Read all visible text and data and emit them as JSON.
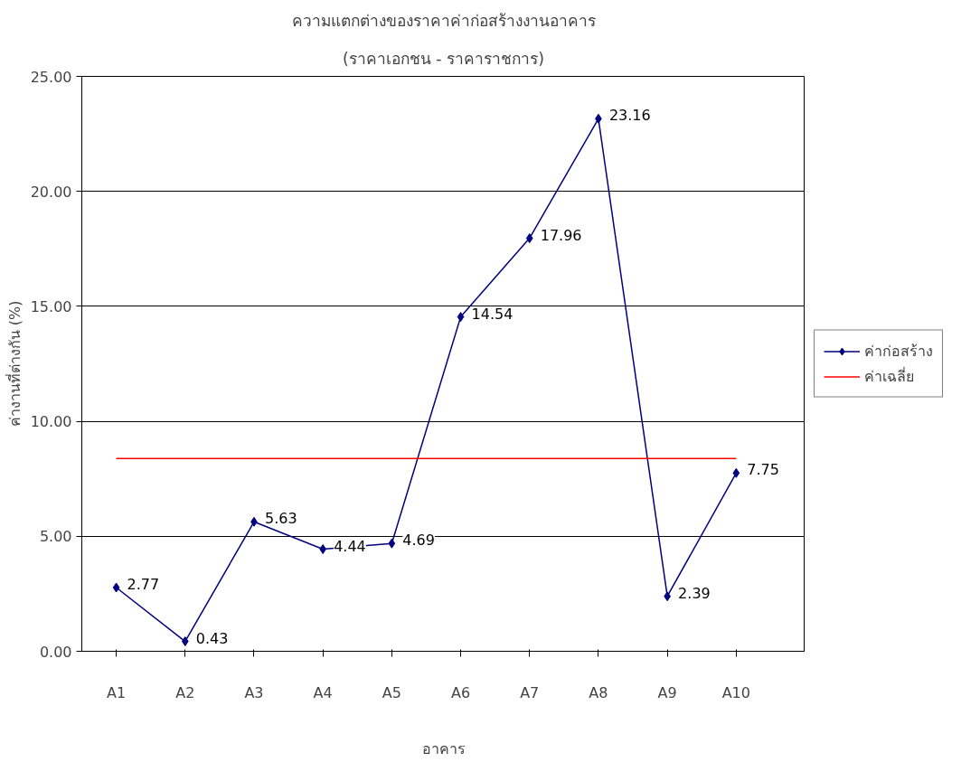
{
  "chart_data": {
    "type": "line",
    "title": "ความแตกต่างของราคาค่าก่อสร้างงานอาคาร",
    "subtitle": "(ราคาเอกชน - ราคาราชการ)",
    "xlabel": "อาคาร",
    "ylabel": "ค่างานที่ต่างกัน (%)",
    "categories": [
      "A1",
      "A2",
      "A3",
      "A4",
      "A5",
      "A6",
      "A7",
      "A8",
      "A9",
      "A10"
    ],
    "series": [
      {
        "name": "ค่าก่อสร้าง",
        "color": "#000080",
        "marker": "diamond",
        "values": [
          2.77,
          0.43,
          5.63,
          4.44,
          4.69,
          14.54,
          17.96,
          23.16,
          2.39,
          7.75
        ],
        "value_labels": [
          "2.77",
          "0.43",
          "5.63",
          "4.44",
          "4.69",
          "14.54",
          "17.96",
          "23.16",
          "2.39",
          "7.75"
        ]
      },
      {
        "name": "ค่าเฉลี่ย",
        "color": "#ff0000",
        "marker": "none",
        "values": [
          8.38,
          8.38,
          8.38,
          8.38,
          8.38,
          8.38,
          8.38,
          8.38,
          8.38,
          8.38
        ]
      }
    ],
    "ylim": [
      0,
      25
    ],
    "yticks": [
      {
        "value": 0,
        "label": "0.00"
      },
      {
        "value": 5,
        "label": "5.00"
      },
      {
        "value": 10,
        "label": "10.00"
      },
      {
        "value": 15,
        "label": "15.00"
      },
      {
        "value": 20,
        "label": "20.00"
      },
      {
        "value": 25,
        "label": "25.00"
      }
    ],
    "grid": "y",
    "legend": "right",
    "line_style": "solid"
  }
}
